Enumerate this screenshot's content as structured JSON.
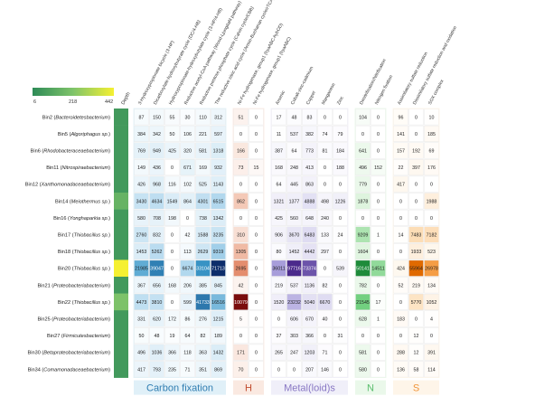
{
  "chart_data": {
    "type": "heatmap",
    "legend": {
      "min_label": "6",
      "mid_label": "218",
      "max_label": "442",
      "gradient": [
        "#2e8b57",
        "#7fc46a",
        "#f5f032"
      ]
    },
    "depth_label": "Depth",
    "depth_values": [
      60,
      60,
      60,
      60,
      60,
      160,
      60,
      60,
      60,
      442,
      60,
      218,
      60,
      60,
      60,
      60
    ],
    "rows": [
      {
        "prefix": "Bin2",
        "name": "Bacteroidetesbacterium"
      },
      {
        "prefix": "Bin5",
        "name": "Algoriphagus sp."
      },
      {
        "prefix": "Bin6",
        "name": "Rhodobacteraceaebacterium"
      },
      {
        "prefix": "Bin11",
        "name": "Nitrospiraebacterium"
      },
      {
        "prefix": "Bin12",
        "name": "Xanthomonadaceaebacterium"
      },
      {
        "prefix": "Bin14",
        "name": "Meiothermus sp."
      },
      {
        "prefix": "Bin16",
        "name": "Yonghaparkia sp."
      },
      {
        "prefix": "Bin17",
        "name": "Thiobacillus sp."
      },
      {
        "prefix": "Bin18",
        "name": "Thiobacillus sp."
      },
      {
        "prefix": "Bin20",
        "name": "Thiobacillus sp."
      },
      {
        "prefix": "Bin21",
        "name": "Proteobacteriabacterium"
      },
      {
        "prefix": "Bin22",
        "name": "Thiobacillus sp."
      },
      {
        "prefix": "Bin25",
        "name": "Proteobacteriabacterium"
      },
      {
        "prefix": "Bin27",
        "name": "Firmicutesbacterium"
      },
      {
        "prefix": "Bin30",
        "name": "Betaproteobacteriabacterium"
      },
      {
        "prefix": "Bin34",
        "name": "Comamonadaceaebacterium"
      }
    ],
    "groups": [
      {
        "name": "Carbon fixation",
        "colors": [
          "#ffffff",
          "#aad4ec",
          "#3a97c8",
          "#0d2d6b"
        ],
        "max": 71713,
        "columns": [
          "3-Hydroxypropionate bicycle (3-HP)",
          "Dicarboxylate-hydroxybutyrate cycle (DC/4-HB)",
          "Hydroxypropionate-hydroxybutylate cycle (3-HP/4-HB)",
          "Reductive acetyl-CoA pathway (Wood-Ljungdahl pathway)",
          "Reductive pentose phosphate cycle (Calvin cycle/CBB)",
          "The reductive citric acid cycle (Arnon-Buchanan cycle/rTCA)"
        ],
        "values": [
          [
            87,
            150,
            55,
            30,
            110,
            312
          ],
          [
            384,
            342,
            50,
            106,
            221,
            597
          ],
          [
            769,
            949,
            425,
            320,
            581,
            1318
          ],
          [
            149,
            436,
            0,
            671,
            169,
            932
          ],
          [
            426,
            968,
            116,
            102,
            525,
            1143
          ],
          [
            3430,
            4634,
            1549,
            864,
            4301,
            6515
          ],
          [
            580,
            708,
            198,
            0,
            738,
            1342
          ],
          [
            2760,
            832,
            0,
            42,
            1588,
            3235
          ],
          [
            1453,
            5262,
            0,
            113,
            2629,
            9319
          ],
          [
            21985,
            39047,
            0,
            6674,
            33104,
            71713
          ],
          [
            367,
            656,
            168,
            206,
            385,
            845
          ],
          [
            4473,
            3810,
            0,
            599,
            41733,
            16516
          ],
          [
            331,
            620,
            172,
            86,
            276,
            1215
          ],
          [
            50,
            48,
            19,
            64,
            82,
            189
          ],
          [
            496,
            1036,
            366,
            118,
            363,
            1432
          ],
          [
            417,
            793,
            235,
            71,
            351,
            869
          ]
        ]
      },
      {
        "name": "H",
        "colors": [
          "#ffffff",
          "#f2c2ad",
          "#d9623b",
          "#7a0c0c"
        ],
        "max": 10079,
        "columns": [
          "Ni-Fe hydrogenase, group1 (hyaABC-hybOD)",
          "Ni-Fe hydrogenase, group1 (hyaABC)"
        ],
        "values": [
          [
            51,
            0
          ],
          [
            0,
            0
          ],
          [
            166,
            0
          ],
          [
            73,
            15
          ],
          [
            0,
            0
          ],
          [
            862,
            0
          ],
          [
            0,
            0
          ],
          [
            310,
            0
          ],
          [
            1305,
            0
          ],
          [
            2695,
            0
          ],
          [
            42,
            0
          ],
          [
            10079,
            0
          ],
          [
            5,
            0
          ],
          [
            0,
            0
          ],
          [
            171,
            0
          ],
          [
            70,
            0
          ]
        ]
      },
      {
        "name": "Metal(loid)s",
        "colors": [
          "#ffffff",
          "#d6d2ee",
          "#9d92d6",
          "#4b2a8c"
        ],
        "max": 97716,
        "columns": [
          "Arsenic",
          "Cobalt-zinc-cadmium",
          "Copper",
          "Manganese",
          "Zinc"
        ],
        "values": [
          [
            17,
            48,
            83,
            0,
            0
          ],
          [
            11,
            537,
            382,
            74,
            79
          ],
          [
            387,
            64,
            773,
            81,
            184
          ],
          [
            168,
            248,
            413,
            0,
            188
          ],
          [
            64,
            445,
            863,
            0,
            0
          ],
          [
            1321,
            1377,
            4888,
            498,
            1226
          ],
          [
            425,
            560,
            648,
            240,
            0
          ],
          [
            906,
            3670,
            6483,
            133,
            24
          ],
          [
            80,
            1452,
            4442,
            297,
            0
          ],
          [
            36011,
            97716,
            73374,
            0,
            539
          ],
          [
            219,
            537,
            1136,
            82,
            0
          ],
          [
            1520,
            23232,
            5040,
            6670,
            0
          ],
          [
            0,
            606,
            670,
            40,
            0
          ],
          [
            37,
            303,
            366,
            0,
            31
          ],
          [
            265,
            247,
            1203,
            71,
            0
          ],
          [
            0,
            0,
            207,
            146,
            0
          ]
        ]
      },
      {
        "name": "N",
        "colors": [
          "#ffffff",
          "#c6ecc6",
          "#6fcf7e",
          "#1e8b3a"
        ],
        "max": 50141,
        "columns": [
          "Denitrification/Nitrification",
          "Nitrogen fixation"
        ],
        "values": [
          [
            104,
            0
          ],
          [
            0,
            0
          ],
          [
            641,
            0
          ],
          [
            496,
            152
          ],
          [
            779,
            0
          ],
          [
            1878,
            0
          ],
          [
            0,
            0
          ],
          [
            9209,
            1
          ],
          [
            1604,
            0
          ],
          [
            50141,
            14511
          ],
          [
            782,
            0
          ],
          [
            21545,
            17
          ],
          [
            628,
            1
          ],
          [
            0,
            0
          ],
          [
            581,
            0
          ],
          [
            580,
            0
          ]
        ]
      },
      {
        "name": "S",
        "colors": [
          "#ffffff",
          "#fde3c2",
          "#f7a24a",
          "#e06a00"
        ],
        "max": 55964,
        "columns": [
          "Assimilatory sulfate reduction",
          "Dissimilatory sulfate reduction and oxidation",
          "SOX complex"
        ],
        "values": [
          [
            96,
            0,
            10
          ],
          [
            141,
            0,
            185
          ],
          [
            157,
            192,
            69
          ],
          [
            22,
            397,
            176
          ],
          [
            417,
            0,
            0
          ],
          [
            0,
            0,
            1988
          ],
          [
            0,
            0,
            0
          ],
          [
            14,
            7483,
            7182
          ],
          [
            0,
            1933,
            523
          ],
          [
            424,
            55964,
            26978
          ],
          [
            52,
            219,
            134
          ],
          [
            0,
            5770,
            1052
          ],
          [
            183,
            0,
            4
          ],
          [
            0,
            12,
            0
          ],
          [
            288,
            12,
            391
          ],
          [
            136,
            58,
            114
          ]
        ]
      }
    ]
  }
}
